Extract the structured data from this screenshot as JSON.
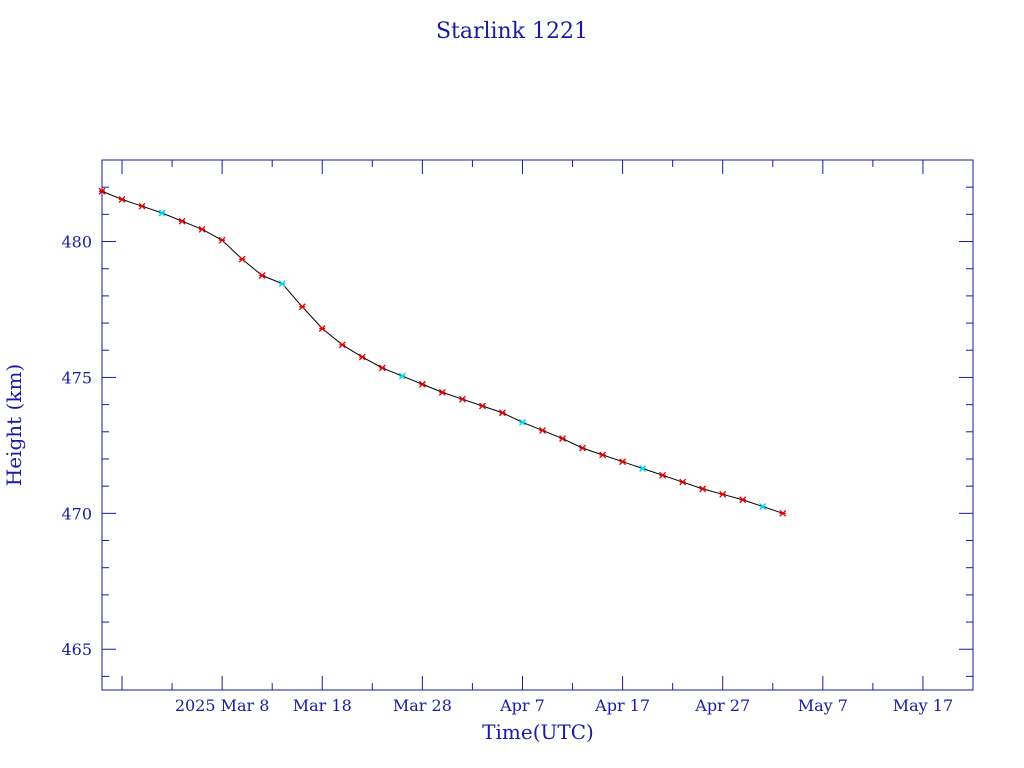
{
  "chart_data": {
    "type": "line",
    "title": "Starlink 1221",
    "xlabel": "Time(UTC)",
    "ylabel": "Height (km)",
    "xlim": [
      "2025-02-24",
      "2025-05-22"
    ],
    "ylim": [
      463.5,
      483.0
    ],
    "yticks": [
      465,
      470,
      475,
      480
    ],
    "xticks": [
      {
        "date": "2025-02-26",
        "label": ""
      },
      {
        "date": "2025-03-08",
        "label": "2025 Mar  8"
      },
      {
        "date": "2025-03-18",
        "label": "Mar 18"
      },
      {
        "date": "2025-03-28",
        "label": "Mar 28"
      },
      {
        "date": "2025-04-07",
        "label": "Apr  7"
      },
      {
        "date": "2025-04-17",
        "label": "Apr 17"
      },
      {
        "date": "2025-04-27",
        "label": "Apr 27"
      },
      {
        "date": "2025-05-07",
        "label": "May  7"
      },
      {
        "date": "2025-05-17",
        "label": "May 17"
      }
    ],
    "grid": false,
    "colors": {
      "axis": "#1a1aa6",
      "line": "#000000",
      "marker": "#e00000",
      "highlight": "#00d0e0"
    },
    "series": [
      {
        "points": [
          [
            "2025-02-24",
            481.85
          ],
          [
            "2025-02-26",
            481.55
          ],
          [
            "2025-02-28",
            481.3
          ],
          [
            "2025-03-02",
            481.05
          ],
          [
            "2025-03-04",
            480.75
          ],
          [
            "2025-03-06",
            480.45
          ],
          [
            "2025-03-08",
            480.05
          ],
          [
            "2025-03-10",
            479.35
          ],
          [
            "2025-03-12",
            478.75
          ],
          [
            "2025-03-14",
            478.45
          ],
          [
            "2025-03-16",
            477.6
          ],
          [
            "2025-03-18",
            476.8
          ],
          [
            "2025-03-20",
            476.2
          ],
          [
            "2025-03-22",
            475.75
          ],
          [
            "2025-03-24",
            475.35
          ],
          [
            "2025-03-26",
            475.05
          ],
          [
            "2025-03-28",
            474.75
          ],
          [
            "2025-03-30",
            474.45
          ],
          [
            "2025-04-01",
            474.2
          ],
          [
            "2025-04-03",
            473.95
          ],
          [
            "2025-04-05",
            473.7
          ],
          [
            "2025-04-07",
            473.35
          ],
          [
            "2025-04-09",
            473.05
          ],
          [
            "2025-04-11",
            472.75
          ],
          [
            "2025-04-13",
            472.4
          ],
          [
            "2025-04-15",
            472.15
          ],
          [
            "2025-04-17",
            471.9
          ],
          [
            "2025-04-19",
            471.65
          ],
          [
            "2025-04-21",
            471.4
          ],
          [
            "2025-04-23",
            471.15
          ],
          [
            "2025-04-25",
            470.9
          ],
          [
            "2025-04-27",
            470.7
          ],
          [
            "2025-04-29",
            470.5
          ],
          [
            "2025-05-01",
            470.25
          ],
          [
            "2025-05-03",
            470.0
          ]
        ]
      }
    ]
  }
}
